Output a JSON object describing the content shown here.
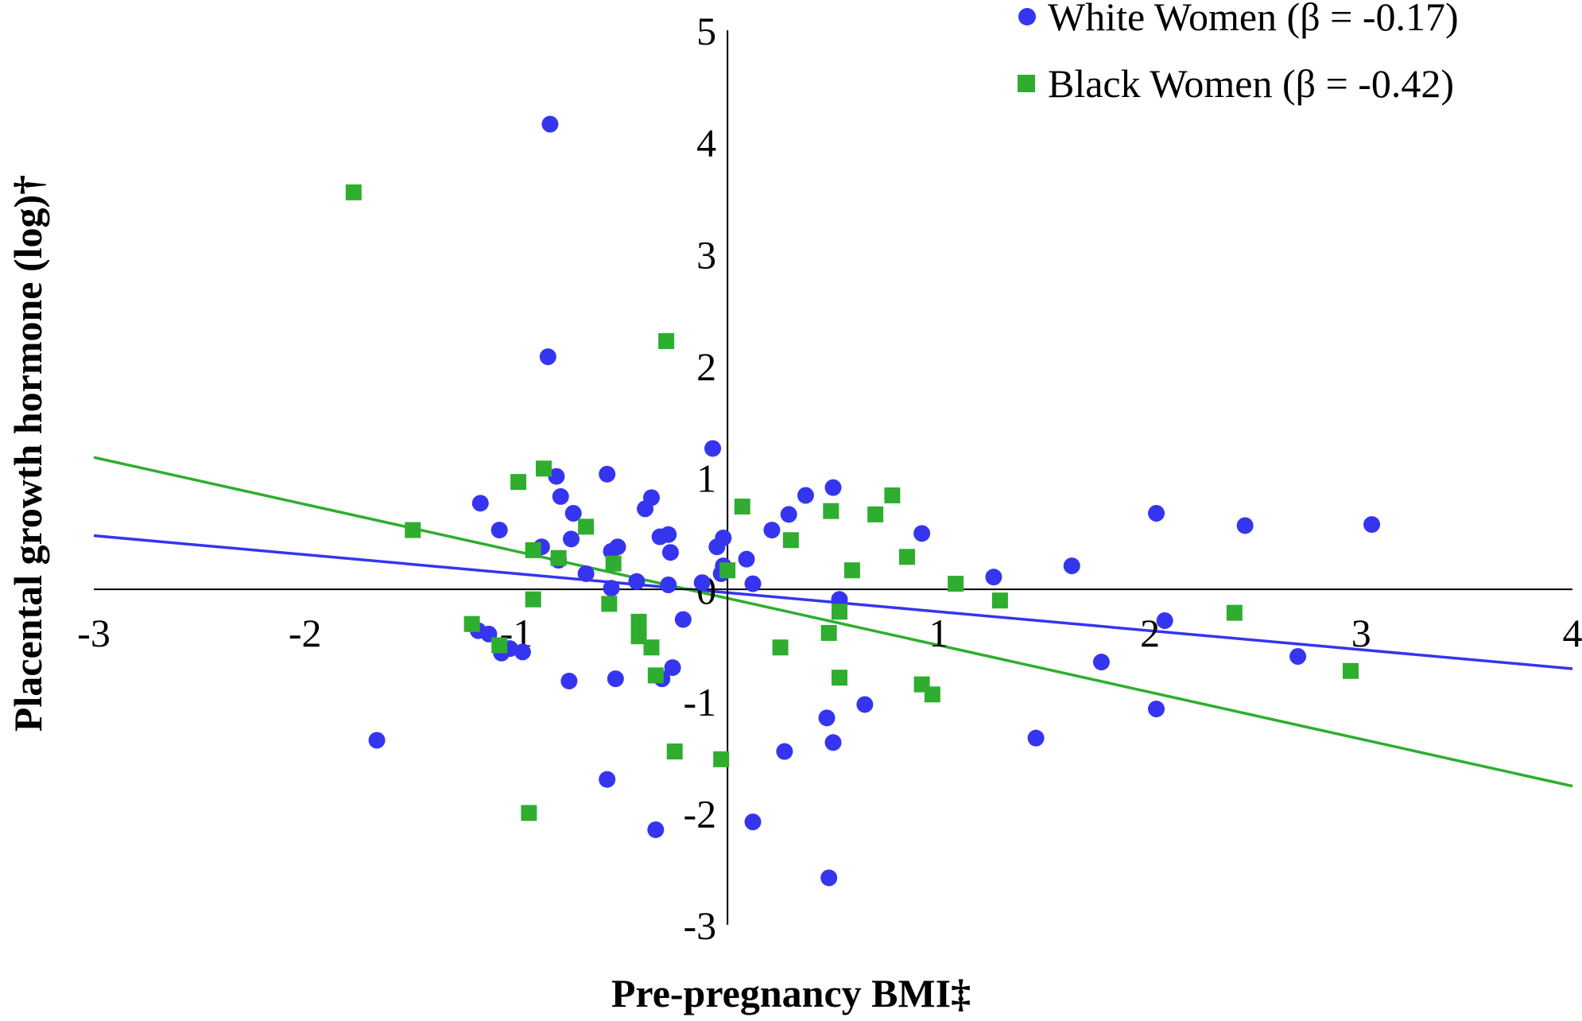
{
  "chart_data": {
    "type": "scatter",
    "title": "",
    "xlabel": "Pre-pregnancy BMI‡",
    "ylabel": "Placental growth hormone (log)†",
    "xlim": [
      -3,
      4
    ],
    "ylim": [
      -3,
      5
    ],
    "x_ticks": [
      "-3",
      "-2",
      "-1",
      "0",
      "1",
      "2",
      "3",
      "4"
    ],
    "y_ticks": [
      "-3",
      "-2",
      "-1",
      "0",
      "1",
      "2",
      "3",
      "4",
      "5"
    ],
    "grid": false,
    "legend_position": "top-right",
    "colors": {
      "white": "#3535f0",
      "black": "#2fad2f"
    },
    "series": [
      {
        "name": "White Women (β = -0.17)",
        "marker": "circle",
        "color": "#3535f0",
        "trendline": {
          "slope": -0.17,
          "intercept": -0.03
        },
        "points": [
          [
            -0.84,
            4.16
          ],
          [
            -0.85,
            2.08
          ],
          [
            -0.07,
            1.26
          ],
          [
            -0.57,
            1.03
          ],
          [
            -0.81,
            1.01
          ],
          [
            0.5,
            0.91
          ],
          [
            0.37,
            0.84
          ],
          [
            -0.79,
            0.83
          ],
          [
            -0.36,
            0.82
          ],
          [
            -1.17,
            0.77
          ],
          [
            -0.73,
            0.68
          ],
          [
            -0.39,
            0.72
          ],
          [
            0.29,
            0.67
          ],
          [
            2.03,
            0.68
          ],
          [
            2.45,
            0.57
          ],
          [
            3.05,
            0.58
          ],
          [
            -1.08,
            0.53
          ],
          [
            0.21,
            0.53
          ],
          [
            0.92,
            0.5
          ],
          [
            -0.28,
            0.49
          ],
          [
            -0.32,
            0.47
          ],
          [
            -0.74,
            0.45
          ],
          [
            -0.02,
            0.46
          ],
          [
            -0.88,
            0.38
          ],
          [
            -0.52,
            0.38
          ],
          [
            -0.05,
            0.38
          ],
          [
            -0.55,
            0.34
          ],
          [
            -0.27,
            0.33
          ],
          [
            -0.8,
            0.26
          ],
          [
            0.09,
            0.27
          ],
          [
            1.63,
            0.21
          ],
          [
            -0.02,
            0.21
          ],
          [
            -0.67,
            0.14
          ],
          [
            1.26,
            0.11
          ],
          [
            -0.03,
            0.14
          ],
          [
            -0.43,
            0.07
          ],
          [
            0.12,
            0.05
          ],
          [
            -0.28,
            0.04
          ],
          [
            -0.12,
            0.06
          ],
          [
            -0.55,
            0.01
          ],
          [
            0.53,
            -0.09
          ],
          [
            -1.18,
            -0.37
          ],
          [
            -1.13,
            -0.4
          ],
          [
            -1.03,
            -0.53
          ],
          [
            -1.07,
            -0.57
          ],
          [
            -0.97,
            -0.56
          ],
          [
            -0.21,
            -0.27
          ],
          [
            2.07,
            -0.28
          ],
          [
            -0.26,
            -0.7
          ],
          [
            -0.75,
            -0.82
          ],
          [
            -0.53,
            -0.8
          ],
          [
            -0.31,
            -0.8
          ],
          [
            1.77,
            -0.65
          ],
          [
            2.7,
            -0.6
          ],
          [
            0.65,
            -1.03
          ],
          [
            -1.66,
            -1.35
          ],
          [
            0.47,
            -1.15
          ],
          [
            1.46,
            -1.33
          ],
          [
            0.5,
            -1.37
          ],
          [
            0.27,
            -1.45
          ],
          [
            2.03,
            -1.07
          ],
          [
            -0.57,
            -1.7
          ],
          [
            -0.34,
            -2.15
          ],
          [
            0.12,
            -2.08
          ],
          [
            0.48,
            -2.58
          ]
        ]
      },
      {
        "name": "Black Women (β = -0.42)",
        "marker": "square",
        "color": "#2fad2f",
        "trendline": {
          "slope": -0.42,
          "intercept": -0.08
        },
        "points": [
          [
            -1.77,
            3.55
          ],
          [
            -0.29,
            2.22
          ],
          [
            -0.87,
            1.08
          ],
          [
            -0.99,
            0.96
          ],
          [
            0.78,
            0.84
          ],
          [
            0.07,
            0.74
          ],
          [
            0.49,
            0.7
          ],
          [
            0.7,
            0.67
          ],
          [
            -1.49,
            0.53
          ],
          [
            -0.67,
            0.56
          ],
          [
            0.3,
            0.44
          ],
          [
            -0.92,
            0.35
          ],
          [
            0.85,
            0.29
          ],
          [
            -0.8,
            0.28
          ],
          [
            -0.54,
            0.23
          ],
          [
            0.59,
            0.17
          ],
          [
            0.0,
            0.17
          ],
          [
            1.08,
            0.05
          ],
          [
            -0.92,
            -0.09
          ],
          [
            -0.56,
            -0.13
          ],
          [
            1.29,
            -0.1
          ],
          [
            -0.42,
            -0.29
          ],
          [
            2.4,
            -0.21
          ],
          [
            -1.21,
            -0.31
          ],
          [
            -0.42,
            -0.42
          ],
          [
            0.48,
            -0.39
          ],
          [
            0.53,
            -0.2
          ],
          [
            -0.36,
            -0.52
          ],
          [
            0.25,
            -0.52
          ],
          [
            -1.08,
            -0.5
          ],
          [
            -0.34,
            -0.77
          ],
          [
            0.53,
            -0.79
          ],
          [
            0.92,
            -0.85
          ],
          [
            0.97,
            -0.94
          ],
          [
            2.95,
            -0.73
          ],
          [
            -0.25,
            -1.45
          ],
          [
            -0.03,
            -1.52
          ],
          [
            -0.94,
            -2.0
          ]
        ]
      }
    ]
  }
}
